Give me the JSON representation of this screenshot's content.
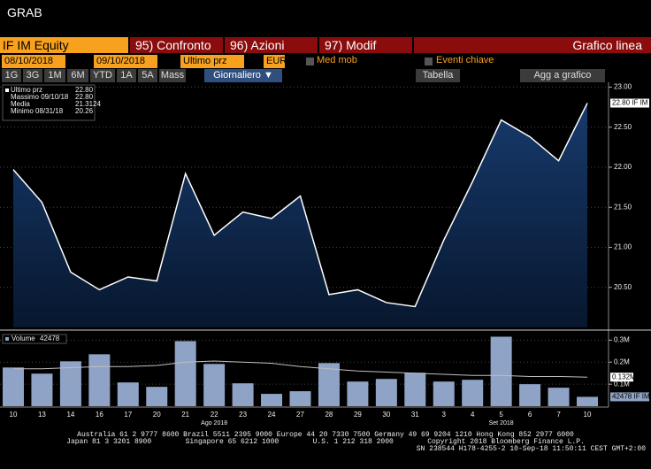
{
  "app_title": "GRAB",
  "toolbar": {
    "security": "IF IM Equity",
    "buttons": [
      "95) Confronto",
      "96) Azioni",
      "97) Modif"
    ],
    "chart_type": "Grafico linea"
  },
  "params": {
    "start": "08/10/2018",
    "end": "09/10/2018",
    "field": "Ultimo prz",
    "currency": "EUR",
    "moving_avg": "Med mob",
    "events": "Eventi chiave"
  },
  "periods": [
    "1G",
    "3G",
    "1M",
    "6M",
    "YTD",
    "1A",
    "5A",
    "Mass"
  ],
  "frequency": "Giornaliero ▼",
  "table": "Tabella",
  "add": "Agg a grafico",
  "chart_data": [
    {
      "type": "area",
      "categories": [
        "10",
        "13",
        "14",
        "16",
        "17",
        "20",
        "21",
        "22",
        "23",
        "24",
        "27",
        "28",
        "29",
        "30",
        "31",
        "3",
        "4",
        "5",
        "6",
        "7",
        "10"
      ],
      "month_labels": [
        "Ago 2018",
        "Set 2018"
      ],
      "series": [
        {
          "name": "Ultimo prz",
          "color": "#ffffff",
          "values": [
            21.97,
            21.56,
            20.69,
            20.47,
            20.63,
            20.58,
            21.92,
            21.15,
            21.44,
            21.36,
            21.64,
            20.41,
            20.47,
            20.31,
            20.26,
            21.09,
            21.82,
            22.59,
            22.38,
            22.08,
            22.8
          ]
        }
      ],
      "last_value": "22.80",
      "stats": [
        {
          "label": "Massimo 09/10/18",
          "value": "22.80"
        },
        {
          "label": "Media",
          "value": "21.3124"
        },
        {
          "label": "Minimo 08/31/18",
          "value": "20.26"
        }
      ],
      "last_label": "22.80 IF IM",
      "ylim": [
        20,
        23.06
      ],
      "yticks": [
        {
          "value": 23,
          "label": "23.00"
        },
        {
          "value": 22.5,
          "label": "22.50"
        },
        {
          "value": 22,
          "label": "22.00"
        },
        {
          "value": 21.5,
          "label": "21.50"
        },
        {
          "value": 21,
          "label": "21.00"
        },
        {
          "value": 20.5,
          "label": "20.50"
        }
      ],
      "grid": true
    },
    {
      "type": "bar",
      "series": [
        {
          "name": "Volume",
          "color": "#8ea3c6",
          "values": [
            0.176,
            0.148,
            0.204,
            0.236,
            0.108,
            0.088,
            0.296,
            0.192,
            0.104,
            0.056,
            0.068,
            0.196,
            0.112,
            0.124,
            0.152,
            0.112,
            0.12,
            0.316,
            0.1,
            0.084,
            0.042478
          ]
        }
      ],
      "last_volume": "42478",
      "last_label": "42478 IF IM",
      "moving_average": {
        "color": "#bfbfbf",
        "values": [
          0.17,
          0.17,
          0.175,
          0.18,
          0.18,
          0.185,
          0.2,
          0.205,
          0.2,
          0.195,
          0.18,
          0.17,
          0.16,
          0.155,
          0.15,
          0.145,
          0.14,
          0.14,
          0.135,
          0.135,
          0.132
        ],
        "value_label": "0.132M"
      },
      "ylim": [
        0,
        0.33
      ],
      "yticks": [
        {
          "value": 0.3,
          "label": "0.3M"
        },
        {
          "value": 0.2,
          "label": "0.2M"
        },
        {
          "value": 0.1,
          "label": "0.1M"
        }
      ],
      "grid": true
    }
  ],
  "footer": [
    "Australia 61 2 9777 8600 Brazil 5511 2395 9000 Europe 44 20 7330 7500 Germany 49 69 9204 1210 Hong Kong 852 2977 6000",
    "Japan 81 3 3201 8900        Singapore 65 6212 1000        U.S. 1 212 318 2000        Copyright 2018 Bloomberg Finance L.P.",
    "SN 238544 H178-4255-2 10-Sep-18 11:50:11 CEST GMT+2:00"
  ]
}
